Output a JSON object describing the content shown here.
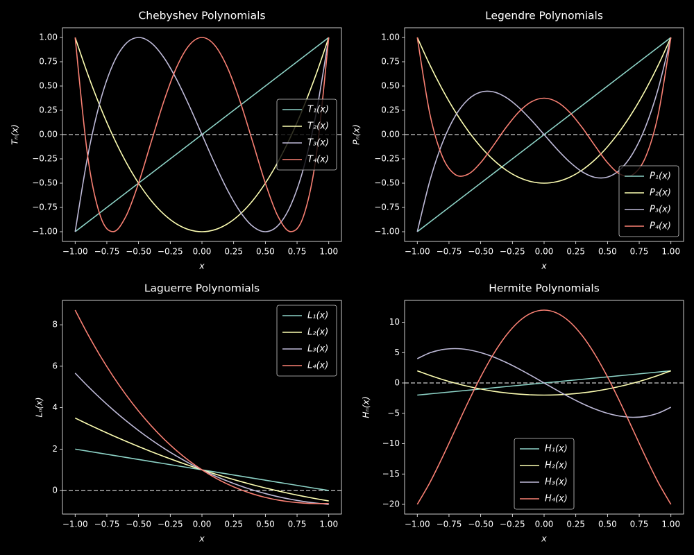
{
  "chart_data": [
    {
      "type": "line",
      "title": "Chebyshev Polynomials",
      "xlabel": "x",
      "ylabel": "Tₙ(x)",
      "legend": "center right",
      "hline": 0,
      "grid": false,
      "x": [
        -1,
        -0.9,
        -0.8,
        -0.7,
        -0.6,
        -0.5,
        -0.4,
        -0.3,
        -0.2,
        -0.1,
        0,
        0.1,
        0.2,
        0.3,
        0.4,
        0.5,
        0.6,
        0.7,
        0.8,
        0.9,
        1
      ],
      "xlim": [
        -1.1,
        1.1
      ],
      "ylim": [
        -1.1,
        1.1
      ],
      "xticks": [
        {
          "value": -1,
          "label": "−1.00"
        },
        {
          "value": -0.75,
          "label": "−0.75"
        },
        {
          "value": -0.5,
          "label": "−0.50"
        },
        {
          "value": -0.25,
          "label": "−0.25"
        },
        {
          "value": 0,
          "label": "0.00"
        },
        {
          "value": 0.25,
          "label": "0.25"
        },
        {
          "value": 0.5,
          "label": "0.50"
        },
        {
          "value": 0.75,
          "label": "0.75"
        },
        {
          "value": 1,
          "label": "1.00"
        }
      ],
      "yticks": [
        {
          "value": -1,
          "label": "−1.00"
        },
        {
          "value": -0.75,
          "label": "−0.75"
        },
        {
          "value": -0.5,
          "label": "−0.50"
        },
        {
          "value": -0.25,
          "label": "−0.25"
        },
        {
          "value": 0,
          "label": "0.00"
        },
        {
          "value": 0.25,
          "label": "0.25"
        },
        {
          "value": 0.5,
          "label": "0.50"
        },
        {
          "value": 0.75,
          "label": "0.75"
        },
        {
          "value": 1,
          "label": "1.00"
        }
      ],
      "series": [
        {
          "name": "T₁(x)",
          "color": "#8dd3c7",
          "values": [
            -1,
            -0.9,
            -0.8,
            -0.7,
            -0.6,
            -0.5,
            -0.4,
            -0.3,
            -0.2,
            -0.1,
            0,
            0.1,
            0.2,
            0.3,
            0.4,
            0.5,
            0.6,
            0.7,
            0.8,
            0.9,
            1
          ]
        },
        {
          "name": "T₂(x)",
          "color": "#feffb3",
          "values": [
            1,
            0.62,
            0.28,
            -0.02,
            -0.28,
            -0.5,
            -0.68,
            -0.82,
            -0.92,
            -0.98,
            -1,
            -0.98,
            -0.92,
            -0.82,
            -0.68,
            -0.5,
            -0.28,
            -0.02,
            0.28,
            0.62,
            1
          ]
        },
        {
          "name": "T₃(x)",
          "color": "#bfbbd9",
          "values": [
            -1,
            -0.216,
            0.352,
            0.728,
            0.936,
            1,
            0.944,
            0.792,
            0.568,
            0.296,
            0,
            -0.296,
            -0.568,
            -0.792,
            -0.944,
            -1,
            -0.936,
            -0.728,
            -0.352,
            0.216,
            1
          ]
        },
        {
          "name": "T₄(x)",
          "color": "#fa8174",
          "values": [
            1,
            -0.2312,
            -0.8432,
            -0.9992,
            -0.8432,
            -0.5,
            -0.0752,
            0.3448,
            0.6928,
            0.9208,
            1,
            0.9208,
            0.6928,
            0.3448,
            -0.0752,
            -0.5,
            -0.8432,
            -0.9992,
            -0.8432,
            -0.2312,
            1
          ]
        }
      ]
    },
    {
      "type": "line",
      "title": "Legendre Polynomials",
      "xlabel": "x",
      "ylabel": "Pₙ(x)",
      "legend": "lower right",
      "hline": 0,
      "grid": false,
      "x": [
        -1,
        -0.9,
        -0.8,
        -0.7,
        -0.6,
        -0.5,
        -0.4,
        -0.3,
        -0.2,
        -0.1,
        0,
        0.1,
        0.2,
        0.3,
        0.4,
        0.5,
        0.6,
        0.7,
        0.8,
        0.9,
        1
      ],
      "xlim": [
        -1.1,
        1.1
      ],
      "ylim": [
        -1.1,
        1.1
      ],
      "xticks": [
        {
          "value": -1,
          "label": "−1.00"
        },
        {
          "value": -0.75,
          "label": "−0.75"
        },
        {
          "value": -0.5,
          "label": "−0.50"
        },
        {
          "value": -0.25,
          "label": "−0.25"
        },
        {
          "value": 0,
          "label": "0.00"
        },
        {
          "value": 0.25,
          "label": "0.25"
        },
        {
          "value": 0.5,
          "label": "0.50"
        },
        {
          "value": 0.75,
          "label": "0.75"
        },
        {
          "value": 1,
          "label": "1.00"
        }
      ],
      "yticks": [
        {
          "value": -1,
          "label": "−1.00"
        },
        {
          "value": -0.75,
          "label": "−0.75"
        },
        {
          "value": -0.5,
          "label": "−0.50"
        },
        {
          "value": -0.25,
          "label": "−0.25"
        },
        {
          "value": 0,
          "label": "0.00"
        },
        {
          "value": 0.25,
          "label": "0.25"
        },
        {
          "value": 0.5,
          "label": "0.50"
        },
        {
          "value": 0.75,
          "label": "0.75"
        },
        {
          "value": 1,
          "label": "1.00"
        }
      ],
      "series": [
        {
          "name": "P₁(x)",
          "color": "#8dd3c7",
          "values": [
            -1,
            -0.9,
            -0.8,
            -0.7,
            -0.6,
            -0.5,
            -0.4,
            -0.3,
            -0.2,
            -0.1,
            0,
            0.1,
            0.2,
            0.3,
            0.4,
            0.5,
            0.6,
            0.7,
            0.8,
            0.9,
            1
          ]
        },
        {
          "name": "P₂(x)",
          "color": "#feffb3",
          "values": [
            1,
            0.715,
            0.46,
            0.235,
            0.04,
            -0.125,
            -0.26,
            -0.365,
            -0.44,
            -0.485,
            -0.5,
            -0.485,
            -0.44,
            -0.365,
            -0.26,
            -0.125,
            0.04,
            0.235,
            0.46,
            0.715,
            1
          ]
        },
        {
          "name": "P₃(x)",
          "color": "#bfbbd9",
          "values": [
            -1,
            -0.4725,
            -0.08,
            0.1925,
            0.36,
            0.4375,
            0.44,
            0.3825,
            0.28,
            0.1475,
            0,
            -0.1475,
            -0.28,
            -0.3825,
            -0.44,
            -0.4375,
            -0.36,
            -0.1925,
            0.08,
            0.4725,
            1
          ]
        },
        {
          "name": "P₄(x)",
          "color": "#fa8174",
          "values": [
            1,
            0.2079,
            -0.233,
            -0.4121,
            -0.408,
            -0.2891,
            -0.113,
            0.0729,
            0.232,
            0.3379,
            0.375,
            0.3379,
            0.232,
            0.0729,
            -0.113,
            -0.2891,
            -0.408,
            -0.4121,
            -0.233,
            0.2079,
            1
          ]
        }
      ]
    },
    {
      "type": "line",
      "title": "Laguerre Polynomials",
      "xlabel": "x",
      "ylabel": "Lₙ(x)",
      "legend": "upper right",
      "hline": 0,
      "grid": false,
      "x": [
        -1,
        -0.9,
        -0.8,
        -0.7,
        -0.6,
        -0.5,
        -0.4,
        -0.3,
        -0.2,
        -0.1,
        0,
        0.1,
        0.2,
        0.3,
        0.4,
        0.5,
        0.6,
        0.7,
        0.8,
        0.9,
        1
      ],
      "xlim": [
        -1.1,
        1.1
      ],
      "ylim": [
        -1.135,
        9.177
      ],
      "xticks": [
        {
          "value": -1,
          "label": "−1.00"
        },
        {
          "value": -0.75,
          "label": "−0.75"
        },
        {
          "value": -0.5,
          "label": "−0.50"
        },
        {
          "value": -0.25,
          "label": "−0.25"
        },
        {
          "value": 0,
          "label": "0.00"
        },
        {
          "value": 0.25,
          "label": "0.25"
        },
        {
          "value": 0.5,
          "label": "0.50"
        },
        {
          "value": 0.75,
          "label": "0.75"
        },
        {
          "value": 1,
          "label": "1.00"
        }
      ],
      "yticks": [
        0,
        2,
        4,
        6,
        8
      ],
      "series": [
        {
          "name": "L₁(x)",
          "color": "#8dd3c7",
          "values": [
            2,
            1.9,
            1.8,
            1.7,
            1.6,
            1.5,
            1.4,
            1.3,
            1.2,
            1.1,
            1,
            0.9,
            0.8,
            0.7,
            0.6,
            0.5,
            0.4,
            0.3,
            0.2,
            0.1,
            0
          ]
        },
        {
          "name": "L₂(x)",
          "color": "#feffb3",
          "values": [
            3.5,
            3.205,
            2.92,
            2.645,
            2.38,
            2.125,
            1.88,
            1.645,
            1.42,
            1.205,
            1,
            0.805,
            0.62,
            0.445,
            0.28,
            0.125,
            -0.02,
            -0.155,
            -0.28,
            -0.395,
            -0.5
          ]
        },
        {
          "name": "L₃(x)",
          "color": "#bfbbd9",
          "values": [
            5.6667,
            5.0365,
            4.4453,
            3.8922,
            3.376,
            2.8958,
            2.4507,
            2.0395,
            1.6613,
            1.3152,
            1,
            0.7148,
            0.4587,
            0.2305,
            0.0293,
            -0.1458,
            -0.296,
            -0.4222,
            -0.5253,
            -0.6065,
            -0.6667
          ]
        },
        {
          "name": "L₄(x)",
          "color": "#fa8174",
          "values": [
            8.7083,
            7.5433,
            6.4784,
            5.5087,
            4.6294,
            3.8359,
            3.1237,
            2.4883,
            1.9254,
            1.4307,
            1,
            0.6293,
            0.3147,
            0.0523,
            -0.1616,
            -0.3307,
            -0.4586,
            -0.5487,
            -0.6043,
            -0.6287,
            -0.625
          ]
        }
      ]
    },
    {
      "type": "line",
      "title": "Hermite Polynomials",
      "xlabel": "x",
      "ylabel": "Hₙ(x)",
      "legend": "lower center",
      "hline": 0,
      "grid": false,
      "x": [
        -1,
        -0.9,
        -0.8,
        -0.7,
        -0.6,
        -0.5,
        -0.4,
        -0.3,
        -0.2,
        -0.1,
        0,
        0.1,
        0.2,
        0.3,
        0.4,
        0.5,
        0.6,
        0.7,
        0.8,
        0.9,
        1
      ],
      "xlim": [
        -1.1,
        1.1
      ],
      "ylim": [
        -21.6,
        13.6
      ],
      "xticks": [
        {
          "value": -1,
          "label": "−1.00"
        },
        {
          "value": -0.75,
          "label": "−0.75"
        },
        {
          "value": -0.5,
          "label": "−0.50"
        },
        {
          "value": -0.25,
          "label": "−0.25"
        },
        {
          "value": 0,
          "label": "0.00"
        },
        {
          "value": 0.25,
          "label": "0.25"
        },
        {
          "value": 0.5,
          "label": "0.50"
        },
        {
          "value": 0.75,
          "label": "0.75"
        },
        {
          "value": 1,
          "label": "1.00"
        }
      ],
      "yticks": [
        {
          "value": -20,
          "label": "−20"
        },
        {
          "value": -15,
          "label": "−15"
        },
        {
          "value": -10,
          "label": "−10"
        },
        {
          "value": -5,
          "label": "−5"
        },
        0,
        5,
        10
      ],
      "series": [
        {
          "name": "H₁(x)",
          "color": "#8dd3c7",
          "values": [
            -2,
            -1.8,
            -1.6,
            -1.4,
            -1.2,
            -1,
            -0.8,
            -0.6,
            -0.4,
            -0.2,
            0,
            0.2,
            0.4,
            0.6,
            0.8,
            1,
            1.2,
            1.4,
            1.6,
            1.8,
            2
          ]
        },
        {
          "name": "H₂(x)",
          "color": "#feffb3",
          "values": [
            2,
            1.24,
            0.56,
            -0.04,
            -0.56,
            -1,
            -1.36,
            -1.64,
            -1.84,
            -1.96,
            -2,
            -1.96,
            -1.84,
            -1.64,
            -1.36,
            -1,
            -0.56,
            -0.04,
            0.56,
            1.24,
            2
          ]
        },
        {
          "name": "H₃(x)",
          "color": "#bfbbd9",
          "values": [
            4,
            4.968,
            5.504,
            5.656,
            5.472,
            5,
            4.288,
            3.384,
            2.336,
            1.192,
            0,
            -1.192,
            -2.336,
            -3.384,
            -4.288,
            -5,
            -5.472,
            -5.656,
            -5.504,
            -4.968,
            -4
          ]
        },
        {
          "name": "H₄(x)",
          "color": "#fa8174",
          "values": [
            -20,
            -16.3824,
            -12.1664,
            -7.6784,
            -3.2064,
            1,
            4.7296,
            7.8096,
            10.1056,
            11.5216,
            12,
            11.5216,
            10.1056,
            7.8096,
            4.7296,
            1,
            -3.2064,
            -7.6784,
            -12.1664,
            -16.3824,
            -20
          ]
        }
      ]
    }
  ]
}
